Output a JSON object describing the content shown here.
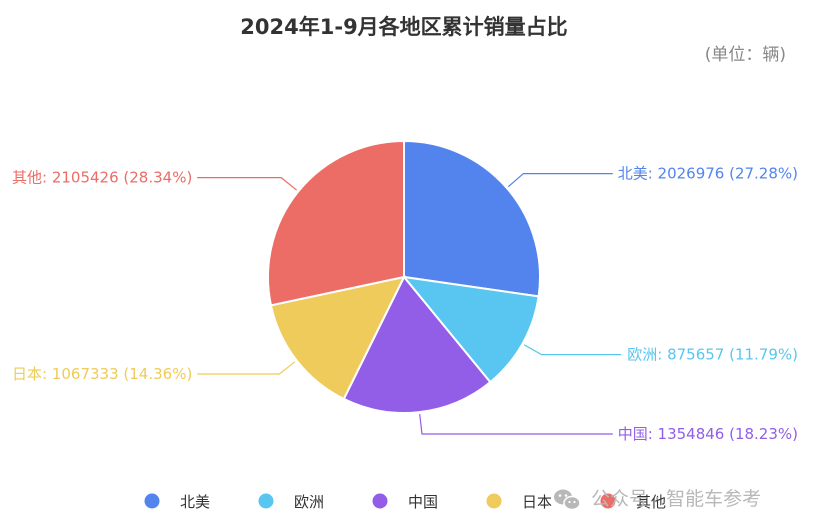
{
  "chart_data": {
    "type": "pie",
    "title": "2024年1-9月各地区累计销量占比",
    "unit_label": "(单位：辆)",
    "slices": [
      {
        "name": "北美",
        "value": 2026976,
        "percent": "27.28%",
        "color": "#5384ee",
        "label": "北美: 2026976 (27.28%)"
      },
      {
        "name": "欧洲",
        "value": 875657,
        "percent": "11.79%",
        "color": "#58c6f0",
        "label": "欧洲: 875657 (11.79%)"
      },
      {
        "name": "中国",
        "value": 1354846,
        "percent": "18.23%",
        "color": "#925ee8",
        "label": "中国: 1354846 (18.23%)"
      },
      {
        "name": "日本",
        "value": 1067333,
        "percent": "14.36%",
        "color": "#eecb5b",
        "label": "日本: 1067333 (14.36%)"
      },
      {
        "name": "其他",
        "value": 2105426,
        "percent": "28.34%",
        "color": "#ec6c66",
        "label": "其他: 2105426 (28.34%)"
      }
    ],
    "legend_position": "bottom"
  },
  "watermark": {
    "icon": "wechat-icon",
    "text": "公众号 · 智能车参考"
  }
}
